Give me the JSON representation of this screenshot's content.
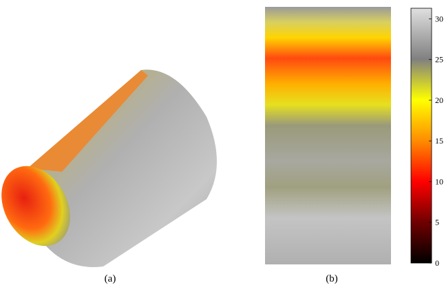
{
  "panels": [
    {
      "label": "(a)"
    },
    {
      "label": "(b)"
    }
  ],
  "colorbar": {
    "lim": [
      0,
      31.3
    ],
    "ticks": [
      0,
      5,
      10,
      15,
      20,
      25,
      30
    ]
  }
}
